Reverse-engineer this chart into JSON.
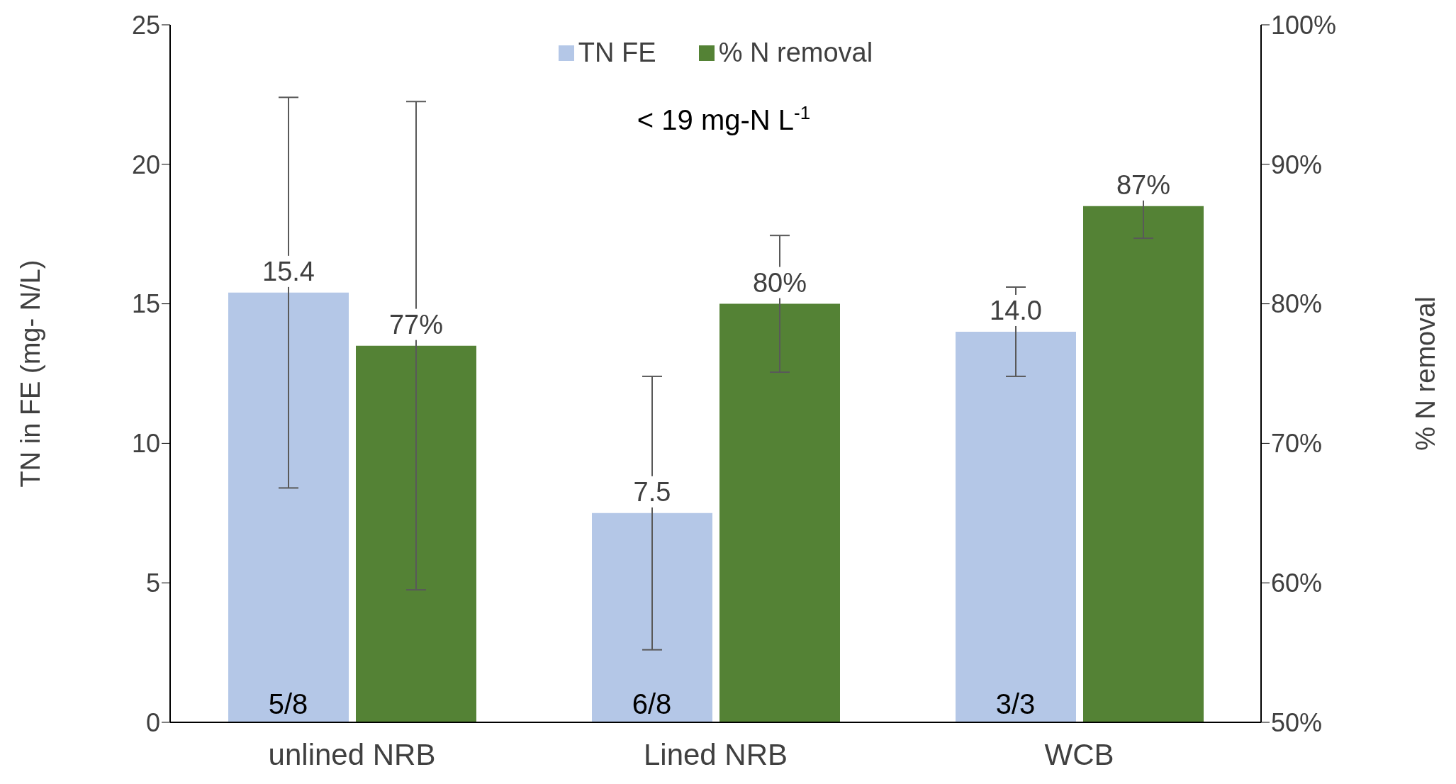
{
  "chart_data": {
    "type": "bar",
    "categories": [
      "unlined NRB",
      "Lined NRB",
      "WCB"
    ],
    "ylabel": "TN in FE (mg- N/L)",
    "y2label": "% N removal",
    "series": [
      {
        "name": "TN FE",
        "color": "#b4c7e7",
        "values": [
          15.4,
          7.5,
          14.0
        ],
        "errors": [
          7.0,
          4.9,
          1.6
        ],
        "value_labels": [
          "15.4",
          "7.5",
          "14.0"
        ]
      },
      {
        "name": "% N removal",
        "color": "#548235",
        "axis": "y2",
        "values": [
          77,
          80,
          87
        ],
        "errors": [
          17.5,
          4.9,
          2.3
        ],
        "value_labels": [
          "77%",
          "80%",
          "87%"
        ]
      }
    ],
    "ylim": [
      0,
      25
    ],
    "yticks": [
      0,
      5,
      10,
      15,
      20,
      25
    ],
    "y2lim": [
      50,
      100
    ],
    "y2ticks": [
      {
        "value": 50,
        "label": "50%"
      },
      {
        "value": 60,
        "label": "60%"
      },
      {
        "value": 70,
        "label": "70%"
      },
      {
        "value": 80,
        "label": "80%"
      },
      {
        "value": 90,
        "label": "90%"
      },
      {
        "value": 100,
        "label": "100%"
      }
    ],
    "legend": "top",
    "grid": false,
    "annotations": [
      "< 19 mg-N L$^{-1}$",
      {
        "text": "5/8",
        "x": "unlined NRB",
        "y": 0
      },
      {
        "text": "6/8",
        "x": "Lined NRB",
        "y": 0
      },
      {
        "text": "3/3",
        "x": "WCB",
        "y": 0
      }
    ]
  }
}
